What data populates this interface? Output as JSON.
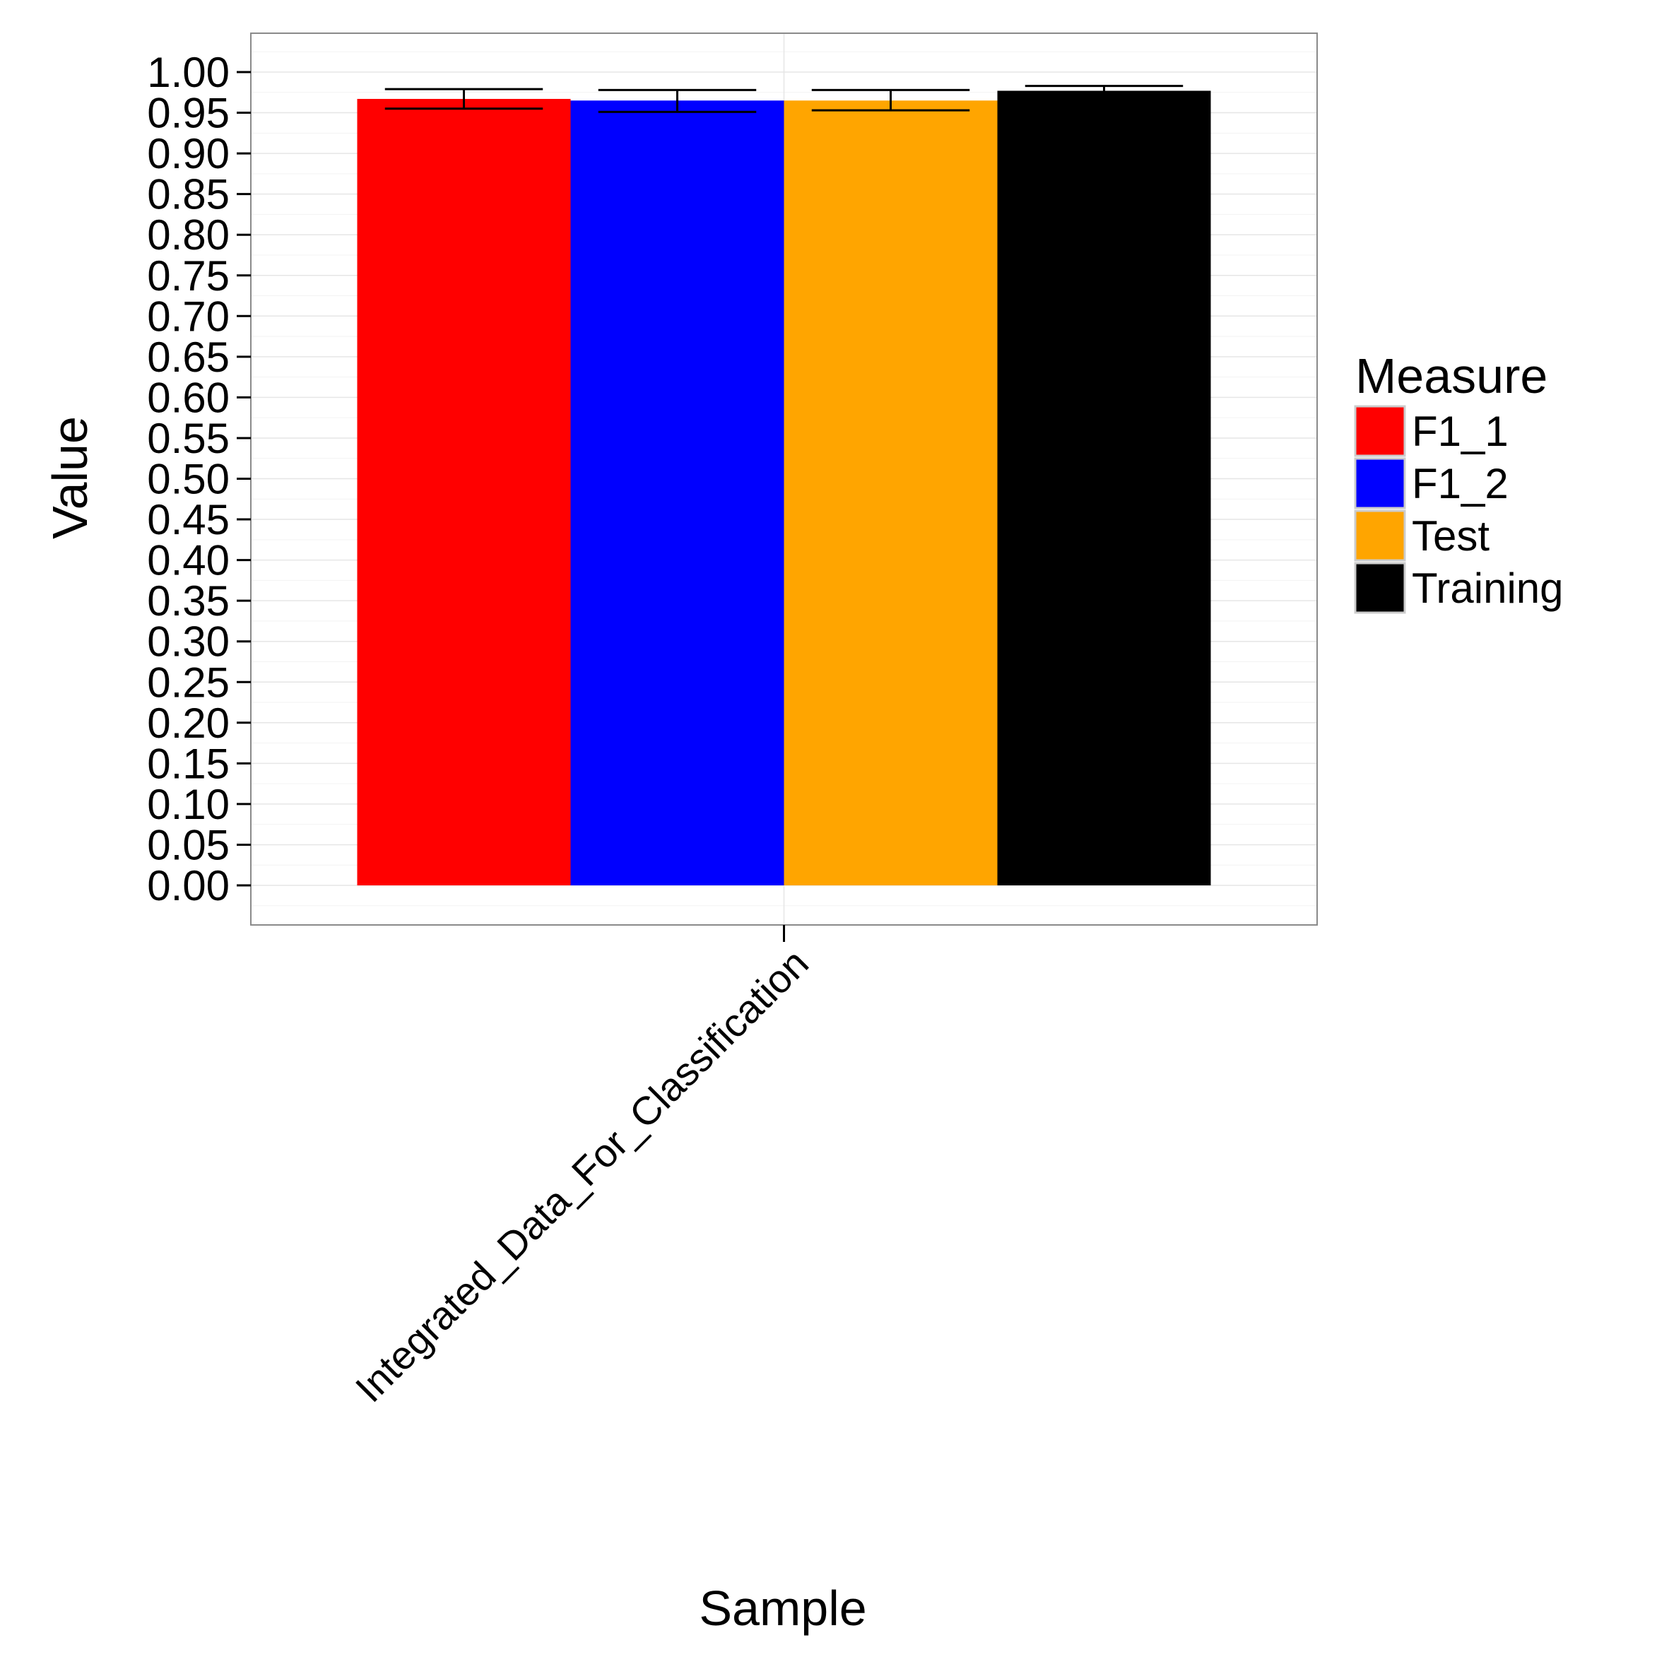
{
  "chart_data": {
    "type": "bar",
    "xlabel": "Sample",
    "ylabel": "Value",
    "categories": [
      "Integrated_Data_For_Classification"
    ],
    "ylim": [
      -0.05,
      1.05
    ],
    "y_ticks": [
      "0.00",
      "0.05",
      "0.10",
      "0.15",
      "0.20",
      "0.25",
      "0.30",
      "0.35",
      "0.40",
      "0.45",
      "0.50",
      "0.55",
      "0.60",
      "0.65",
      "0.70",
      "0.75",
      "0.80",
      "0.85",
      "0.90",
      "0.95",
      "1.00"
    ],
    "legend": {
      "title": "Measure",
      "position": "right"
    },
    "grid": true,
    "series": [
      {
        "name": "F1_1",
        "color": "#ff0000",
        "values": [
          0.967
        ],
        "error_low": [
          0.955
        ],
        "error_high": [
          0.979
        ]
      },
      {
        "name": "F1_2",
        "color": "#0000ff",
        "values": [
          0.965
        ],
        "error_low": [
          0.951
        ],
        "error_high": [
          0.978
        ]
      },
      {
        "name": "Test",
        "color": "#ffa500",
        "values": [
          0.965
        ],
        "error_low": [
          0.953
        ],
        "error_high": [
          0.978
        ]
      },
      {
        "name": "Training",
        "color": "#000000",
        "values": [
          0.977
        ],
        "error_low": [
          0.974
        ],
        "error_high": [
          0.983
        ]
      }
    ]
  }
}
